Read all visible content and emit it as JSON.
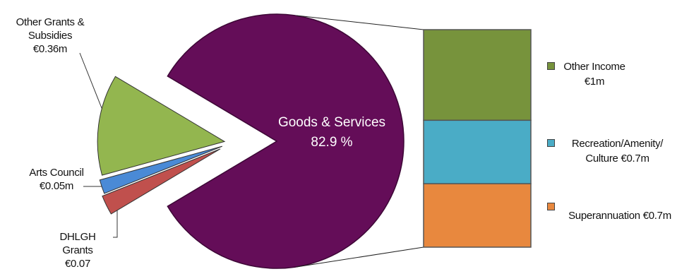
{
  "chart_data": {
    "type": "bar_of_pie",
    "pie": {
      "slices": [
        {
          "name": "Other Grants & Subsidies",
          "value": 0.36,
          "value_label": "€0.36m",
          "color": "#93b64f"
        },
        {
          "name": "Arts Council",
          "value": 0.05,
          "value_label": "€0.05m",
          "color": "#4a8ad6"
        },
        {
          "name": "DHLGH Grants",
          "value": 0.07,
          "value_label": "€0.07",
          "color": "#c0504d"
        }
      ],
      "main": {
        "name": "Goods & Services",
        "value": 82.9,
        "value_label": "82.9 %",
        "color": "#640d58"
      }
    },
    "bar": {
      "categories": [
        "Other Income",
        "Recreation/Amenity/ Culture",
        "Superannuation"
      ],
      "values": [
        1,
        0.7,
        0.7
      ],
      "value_labels": [
        "€1m",
        "€0.7m",
        "€0.7m"
      ],
      "colors": [
        "#77933c",
        "#4aacc6",
        "#e8883e"
      ]
    }
  }
}
